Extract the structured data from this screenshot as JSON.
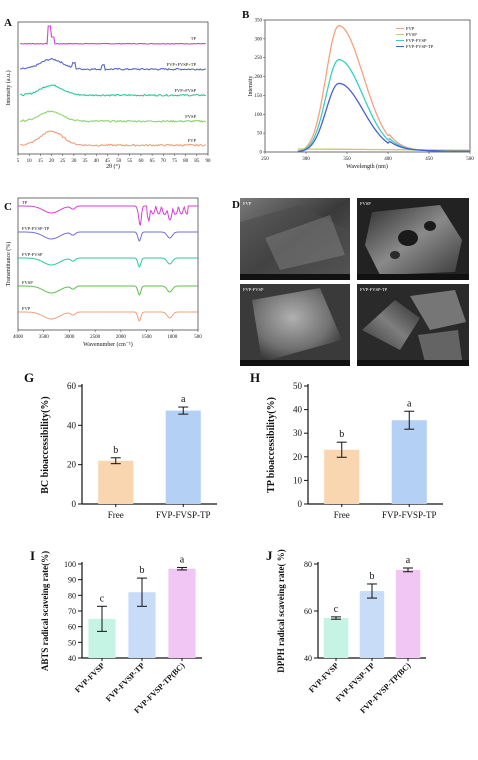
{
  "panels": {
    "A": {
      "label": "A",
      "xlabel": "2θ (°)",
      "ylabel": "Intensity (a.u.)",
      "xlim": [
        5,
        90
      ],
      "xticks": [
        5,
        10,
        15,
        20,
        25,
        30,
        35,
        40,
        45,
        50,
        55,
        60,
        65,
        70,
        75,
        80,
        85,
        90
      ],
      "traces": [
        {
          "name": "TP",
          "color": "#d63fd6"
        },
        {
          "name": "FVP+FVSP+TP",
          "color": "#5a67c9"
        },
        {
          "name": "FVP+FVSP",
          "color": "#2cc9a0"
        },
        {
          "name": "FVSP",
          "color": "#8fd46a"
        },
        {
          "name": "FVP",
          "color": "#f0a07a"
        }
      ]
    },
    "B": {
      "label": "B",
      "xlabel": "Wavelength (nm)",
      "ylabel": "Intensity",
      "xlim": [
        250,
        500
      ],
      "ylim": [
        0,
        350
      ],
      "xticks": [
        250,
        300,
        350,
        400,
        450,
        500
      ],
      "yticks": [
        0,
        50,
        100,
        150,
        200,
        250,
        300,
        350
      ],
      "series": [
        {
          "name": "FVP",
          "color": "#f5a27f",
          "peak": 335
        },
        {
          "name": "FVSP",
          "color": "#c8c870",
          "peak": 8
        },
        {
          "name": "FVP-FVSP",
          "color": "#38d0c4",
          "peak": 245
        },
        {
          "name": "FVP-FVSP-TP",
          "color": "#4a5fcf",
          "peak": 182
        }
      ]
    },
    "C": {
      "label": "C",
      "xlabel": "Wavenumber (cm⁻¹)",
      "ylabel": "Transmittance (%)",
      "xticks": [
        4000,
        3500,
        3000,
        2500,
        2000,
        1500,
        1000,
        500
      ],
      "traces": [
        {
          "name": "TP",
          "color": "#d63fd6"
        },
        {
          "name": "FVP-FVSP-TP",
          "color": "#6f6fd6"
        },
        {
          "name": "FVP-FVSP",
          "color": "#2cc99a"
        },
        {
          "name": "FVSP",
          "color": "#5fbf4f"
        },
        {
          "name": "FVP",
          "color": "#f0a07a"
        }
      ]
    },
    "D": {
      "label": "D",
      "images": [
        {
          "tag": "FVP"
        },
        {
          "tag": "FVSP"
        },
        {
          "tag": "FVP-FVSP"
        },
        {
          "tag": "FVP-FVSP-TP"
        }
      ]
    }
  },
  "chart_data": [
    {
      "id": "G",
      "label": "G",
      "type": "bar",
      "categories": [
        "Free",
        "FVP-FVSP-TP"
      ],
      "values": [
        22,
        47.5
      ],
      "errors": [
        1.5,
        1.8
      ],
      "letters": [
        "b",
        "a"
      ],
      "colors": [
        "#f9d5b0",
        "#b5d0f5"
      ],
      "ylabel": "BC bioaccessibility(%)",
      "ylim": [
        0,
        60
      ],
      "yticks": [
        0,
        20,
        40,
        60
      ]
    },
    {
      "id": "H",
      "label": "H",
      "type": "bar",
      "categories": [
        "Free",
        "FVP-FVSP-TP"
      ],
      "values": [
        23,
        35.5
      ],
      "errors": [
        3.2,
        3.8
      ],
      "letters": [
        "b",
        "a"
      ],
      "colors": [
        "#f9d5b0",
        "#b5d0f5"
      ],
      "ylabel": "TP bioaccessibility(%)",
      "ylim": [
        0,
        50
      ],
      "yticks": [
        0,
        10,
        20,
        30,
        40,
        50
      ]
    },
    {
      "id": "I",
      "label": "I",
      "type": "bar",
      "categories": [
        "FVP-FVSP",
        "FVP-FVSP-TP",
        "FVP-FVSP-TP(BC)"
      ],
      "values": [
        65,
        82,
        97
      ],
      "errors": [
        8,
        9,
        0.8
      ],
      "letters": [
        "c",
        "b",
        "a"
      ],
      "colors": [
        "#c6f4e4",
        "#c8dcf8",
        "#f2c6f4"
      ],
      "ylabel": "ABTS radical scaveing rate(%)",
      "ylim": [
        40,
        100
      ],
      "yticks": [
        40,
        50,
        60,
        70,
        80,
        90,
        100
      ]
    },
    {
      "id": "J",
      "label": "J",
      "type": "bar",
      "categories": [
        "FVP-FVSP",
        "FVP-FVSP-TP",
        "FVP-FVSP-TP(BC)"
      ],
      "values": [
        57,
        68.5,
        77.5
      ],
      "errors": [
        0.5,
        3,
        0.8
      ],
      "letters": [
        "c",
        "b",
        "a"
      ],
      "colors": [
        "#c6f4e4",
        "#c8dcf8",
        "#f2c6f4"
      ],
      "ylabel": "DPPH radical scaveing rate( %)",
      "ylim": [
        40,
        80
      ],
      "yticks": [
        40,
        60,
        80
      ]
    }
  ]
}
